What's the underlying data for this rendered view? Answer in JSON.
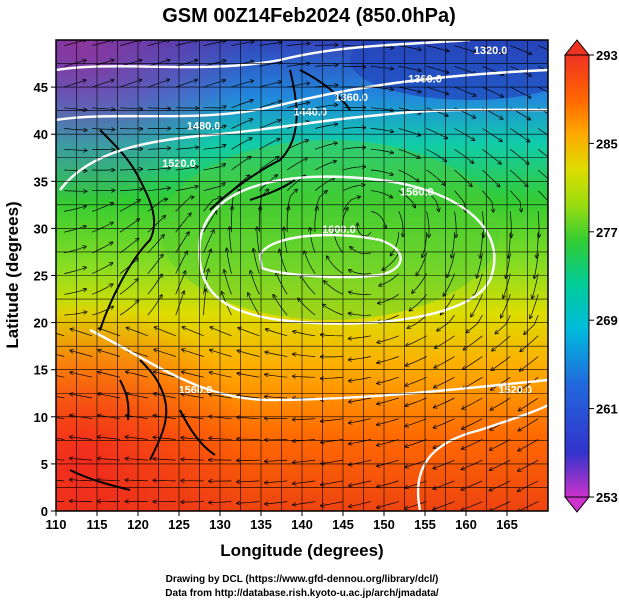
{
  "title": "GSM 00Z14Feb2024 (850.0hPa)",
  "credits": {
    "line1": "Drawing by DCL (https://www.gfd-dennou.org/library/dcl/)",
    "line2": "Data from http://database.rish.kyoto-u.ac.jp/arch/jmadata/"
  },
  "chart_data": {
    "type": "heatmap",
    "xlabel": "Longitude (degrees)",
    "ylabel": "Latitude  (degrees)",
    "xlim": [
      110,
      170
    ],
    "ylim": [
      0,
      50
    ],
    "x_ticks": [
      110,
      115,
      120,
      125,
      130,
      135,
      140,
      145,
      150,
      155,
      160,
      165
    ],
    "y_ticks": [
      0,
      5,
      10,
      15,
      20,
      25,
      30,
      35,
      40,
      45
    ],
    "grid": true,
    "colorbar": {
      "vmin": 253,
      "vmax": 293,
      "tick_labels": [
        "293",
        "285",
        "277",
        "269",
        "261",
        "253"
      ],
      "colors": [
        "#cc33cc",
        "#3333cc",
        "#2266dd",
        "#00bbdd",
        "#00cc99",
        "#33cc33",
        "#99dd11",
        "#dddd00",
        "#ffaa00",
        "#ff6600",
        "#ee3322"
      ]
    },
    "contour_labels": [
      {
        "text": "1320.0",
        "lon": 163,
        "lat": 48.5
      },
      {
        "text": "1360.0",
        "lon": 155,
        "lat": 45.5
      },
      {
        "text": "1360.0",
        "lon": 146,
        "lat": 43.5
      },
      {
        "text": "1440.0",
        "lon": 141,
        "lat": 42
      },
      {
        "text": "1480.0",
        "lon": 128,
        "lat": 40.5
      },
      {
        "text": "1520.0",
        "lon": 125,
        "lat": 36.5
      },
      {
        "text": "1560.0",
        "lon": 154,
        "lat": 33.5
      },
      {
        "text": "1600.0",
        "lon": 144.5,
        "lat": 29.5
      },
      {
        "text": "1560.0",
        "lon": 127,
        "lat": 12.5
      },
      {
        "text": "1520.0",
        "lon": 166,
        "lat": 12.5
      }
    ]
  }
}
